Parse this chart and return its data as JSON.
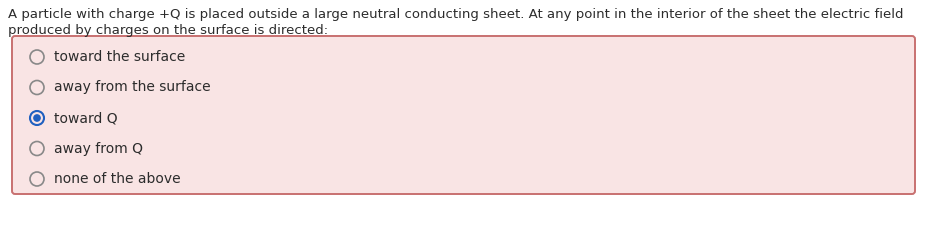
{
  "question_line1": "A particle with charge +Q is placed outside a large neutral conducting sheet. At any point in the interior of the sheet the electric field",
  "question_line2": "produced by charges on the surface is directed:",
  "options": [
    {
      "text": "toward the surface",
      "selected": false
    },
    {
      "text": "away from the surface",
      "selected": false
    },
    {
      "text": "toward Q",
      "selected": true
    },
    {
      "text": "away from Q",
      "selected": false
    },
    {
      "text": "none of the above",
      "selected": false
    }
  ],
  "bg_color": "#ffffff",
  "box_bg_color": "#f9e4e4",
  "box_border_color": "#c87070",
  "text_color": "#2c2c2c",
  "question_fontsize": 9.5,
  "option_fontsize": 10.0,
  "radio_unsel_edge_color": "#888888",
  "radio_sel_fill_color": "#2060c0",
  "radio_sel_edge_color": "#2060c0"
}
